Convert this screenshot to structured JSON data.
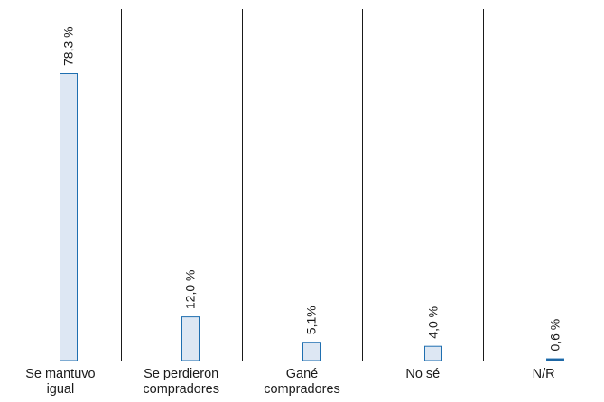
{
  "chart_data": {
    "type": "bar",
    "categories": [
      [
        "Se mantuvo",
        "igual"
      ],
      [
        "Se perdieron",
        "compradores"
      ],
      [
        "Gané",
        "compradores"
      ],
      [
        "No sé"
      ],
      [
        "N/R"
      ]
    ],
    "values": [
      78.3,
      12.0,
      5.1,
      4.0,
      0.6
    ],
    "value_labels": [
      "78,3 %",
      "12,0 %",
      "5,1%",
      "4,0 %",
      "0,6 %"
    ],
    "title": "",
    "xlabel": "",
    "ylabel": "",
    "ylim": [
      0,
      90
    ],
    "grid": false,
    "colors": {
      "bar_fill": "#dde7f3",
      "bar_stroke": "#1f6fb0",
      "small_bar_fill": "#1f5f99",
      "axis": "#1a1a1a",
      "text": "#1a1a1a"
    }
  }
}
